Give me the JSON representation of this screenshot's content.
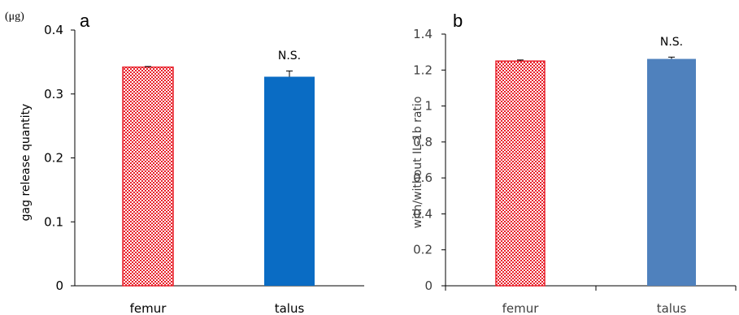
{
  "chart_data": [
    {
      "type": "bar",
      "panel_label": "a",
      "unit_label": "(μg)",
      "categories": [
        "femur",
        "talus"
      ],
      "values": [
        0.342,
        0.327
      ],
      "errors": [
        0.001,
        0.009
      ],
      "annotation": "N.S.",
      "xlabel": "",
      "ylabel": "gag release quantity",
      "ylim": [
        0,
        0.4
      ],
      "yticks": [
        "0",
        "0.1",
        "0.2",
        "0.3",
        "0.4"
      ],
      "bar_styles": [
        "red-checkered-hatch",
        "solid"
      ],
      "colors": [
        "#e8202a",
        "#0a6cc4"
      ],
      "grid": false
    },
    {
      "type": "bar",
      "panel_label": "b",
      "categories": [
        "femur",
        "talus"
      ],
      "values": [
        1.25,
        1.262
      ],
      "errors": [
        0.006,
        0.01
      ],
      "annotation": "N.S.",
      "xlabel": "",
      "ylabel": "with/without IL-1b ratio",
      "ylim": [
        0,
        1.4
      ],
      "yticks": [
        "0",
        "0.2",
        "0.4",
        "0.6",
        "0.8",
        "1",
        "1.2",
        "1.4"
      ],
      "bar_styles": [
        "red-checkered-hatch",
        "solid"
      ],
      "colors": [
        "#e8202a",
        "#4f81bd"
      ],
      "grid": false
    }
  ]
}
